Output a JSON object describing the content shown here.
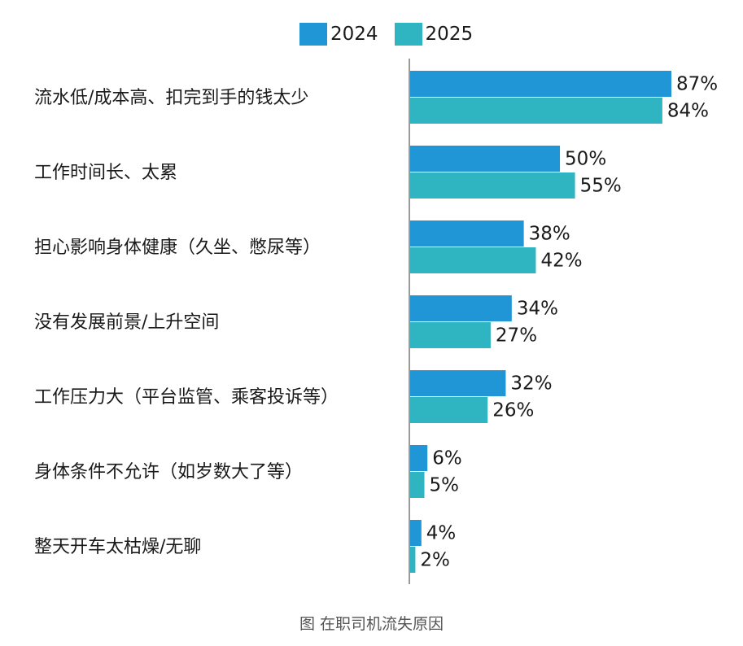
{
  "chart_data": {
    "type": "bar",
    "orientation": "horizontal",
    "categories": [
      "流水低/成本高、扣完到手的钱太少",
      "工作时间长、太累",
      "担心影响身体健康（久坐、憋尿等）",
      "没有发展前景/上升空间",
      "工作压力大（平台监管、乘客投诉等）",
      "身体条件不允许（如岁数大了等）",
      "整天开车太枯燥/无聊"
    ],
    "series": [
      {
        "name": "2024",
        "values": [
          87,
          50,
          38,
          34,
          32,
          6,
          4
        ],
        "labels": [
          "87%",
          "50%",
          "38%",
          "34%",
          "32%",
          "6%",
          "4%"
        ],
        "color": "#2196d6"
      },
      {
        "name": "2025",
        "values": [
          84,
          55,
          42,
          27,
          26,
          5,
          2
        ],
        "labels": [
          "84%",
          "55%",
          "42%",
          "27%",
          "26%",
          "5%",
          "2%"
        ],
        "color": "#2fb5c1"
      }
    ],
    "xlim": [
      0,
      100
    ],
    "caption": "图 在职司机流失原因",
    "legend_position": "top"
  }
}
